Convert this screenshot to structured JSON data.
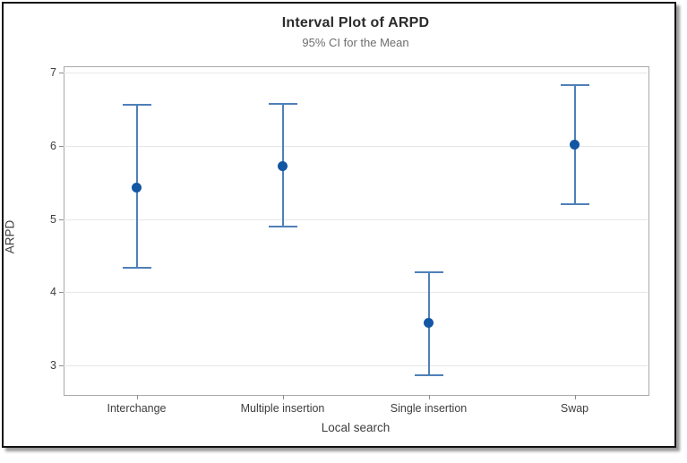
{
  "chart_data": {
    "type": "interval",
    "title": "Interval Plot of ARPD",
    "subtitle": "95% CI for the Mean",
    "xlabel": "Local search",
    "ylabel": "ARPD",
    "yticks": [
      3,
      4,
      5,
      6,
      7
    ],
    "ylim": [
      2.61,
      7.09
    ],
    "grid": "horizontal",
    "legend": "none",
    "points": [
      {
        "category": "Interchange",
        "mean": 5.43,
        "ci_low": 4.33,
        "ci_high": 6.56
      },
      {
        "category": "Multiple insertion",
        "mean": 5.73,
        "ci_low": 4.9,
        "ci_high": 6.57
      },
      {
        "category": "Single insertion",
        "mean": 3.58,
        "ci_low": 2.87,
        "ci_high": 4.27
      },
      {
        "category": "Swap",
        "mean": 6.02,
        "ci_low": 5.21,
        "ci_high": 6.83
      }
    ],
    "colors": {
      "interval_line": "#4f80b8",
      "marker": "#1356a4",
      "gridline": "#e7e7e7",
      "plot_border": "#a9a9a9",
      "tick": "#8c8c8c",
      "title": "#2b2b2b",
      "subtitle": "#6e6e6e",
      "labels": "#3d3d3d"
    }
  }
}
